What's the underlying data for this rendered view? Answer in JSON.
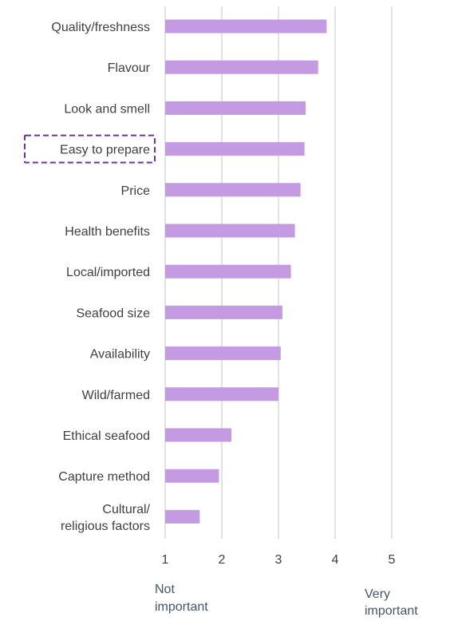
{
  "chart_data": {
    "type": "bar",
    "orientation": "horizontal",
    "categories": [
      "Quality/freshness",
      "Flavour",
      "Look and smell",
      "Easy to prepare",
      "Price",
      "Health benefits",
      "Local/imported",
      "Seafood size",
      "Availability",
      "Wild/farmed",
      "Ethical seafood",
      "Capture method",
      [
        "Cultural/",
        "religious factors"
      ]
    ],
    "values": [
      3.85,
      3.7,
      3.48,
      3.46,
      3.39,
      3.29,
      3.22,
      3.07,
      3.04,
      3.0,
      2.17,
      1.95,
      1.61
    ],
    "xlim": [
      1,
      5
    ],
    "xticks": [
      "1",
      "2",
      "3",
      "4",
      "5"
    ],
    "axis_notes": {
      "low": [
        "Not",
        "important"
      ],
      "high": [
        "Very",
        "important"
      ]
    },
    "highlighted_category": "Easy to prepare",
    "grid": "vertical",
    "colors": {
      "bar": "#c49be3",
      "grid": "#d9d9d9",
      "highlight_border": "#7030a0",
      "label_text": "#404040",
      "note_text": "#44546a"
    }
  }
}
